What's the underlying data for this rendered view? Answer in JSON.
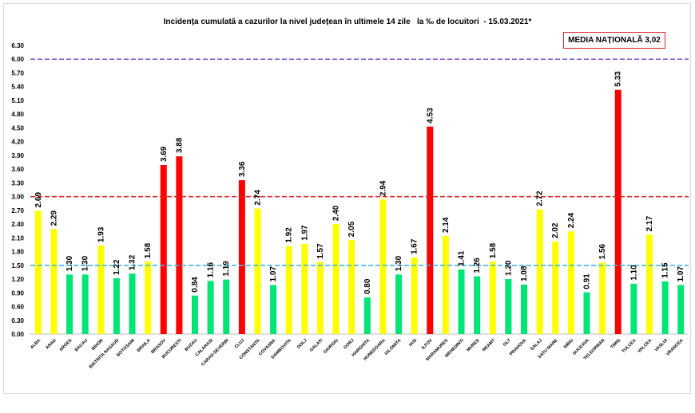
{
  "title": "Incidența cumulată a cazurilor la nivel județean în ultimele 14 zile   la ‰ de locuitori  - 15.03.2021*",
  "media_label": "MEDIA NAȚIONALĂ 3,02",
  "colors": {
    "red": "#ff0000",
    "yellow": "#ffff00",
    "green": "#00e676",
    "line_purple": "#7b4fd6",
    "line_red": "#e02020",
    "line_blue": "#3fb6e8"
  },
  "chart_data": {
    "type": "bar",
    "categories": [
      "ALBA",
      "ARAD",
      "ARGES",
      "BACAU",
      "BIHOR",
      "BISTRITA NASAUD",
      "BOTOSANI",
      "BRAILA",
      "BRASOV",
      "BUCURESTI",
      "BUZAU",
      "CALARASI",
      "CARAS-SEVERIN",
      "CLUJ",
      "CONSTANTA",
      "COVASNA",
      "DAMBOVITA",
      "DOLJ",
      "GALATI",
      "GIURGIU",
      "GORJ",
      "HARGHITA",
      "HUNEDOARA",
      "IALOMITA",
      "IASI",
      "ILFOV",
      "MARAMURES",
      "MEHEDINTI",
      "MURES",
      "NEAMT",
      "OLT",
      "PRAHOVA",
      "SALAJ",
      "SATU MARE",
      "SIBIU",
      "SUCEAVA",
      "TELEORMAN",
      "TIMIS",
      "TULCEA",
      "VALCEA",
      "VASLUI",
      "VRANCEA"
    ],
    "values": [
      2.69,
      2.29,
      1.3,
      1.3,
      1.93,
      1.22,
      1.32,
      1.58,
      3.69,
      3.88,
      0.84,
      1.16,
      1.19,
      3.36,
      2.74,
      1.07,
      1.92,
      1.97,
      1.57,
      2.4,
      2.05,
      0.8,
      2.94,
      1.3,
      1.67,
      4.53,
      2.14,
      1.41,
      1.26,
      1.58,
      1.2,
      1.08,
      2.72,
      2.02,
      2.24,
      0.91,
      1.56,
      5.33,
      1.1,
      2.17,
      1.15,
      1.07
    ],
    "bar_colors": [
      "yellow",
      "yellow",
      "green",
      "green",
      "yellow",
      "green",
      "green",
      "yellow",
      "red",
      "red",
      "green",
      "green",
      "green",
      "red",
      "yellow",
      "green",
      "yellow",
      "yellow",
      "yellow",
      "yellow",
      "yellow",
      "green",
      "yellow",
      "green",
      "yellow",
      "red",
      "yellow",
      "green",
      "green",
      "yellow",
      "green",
      "green",
      "yellow",
      "yellow",
      "yellow",
      "green",
      "yellow",
      "red",
      "green",
      "yellow",
      "green",
      "green"
    ],
    "value_labels": [
      "2.69",
      "2.29",
      "1.30",
      "1.30",
      "1.93",
      "1.22",
      "1.32",
      "1.58",
      "3.69",
      "3.88",
      "0.84",
      "1.16",
      "1.19",
      "3.36",
      "2.74",
      "1.07",
      "1.92",
      "1.97",
      "1.57",
      "2.40",
      "2.05",
      "0.80",
      "2.94",
      "1.30",
      "1.67",
      "4.53",
      "2.14",
      "1.41",
      "1.26",
      "1.58",
      "1.20",
      "1.08",
      "2.72",
      "2.02",
      "2.24",
      "0.91",
      "1.56",
      "5.33",
      "1.10",
      "2.17",
      "1.15",
      "1.07"
    ],
    "y_ticks": [
      "0.00",
      "0.30",
      "0.60",
      "0.90",
      "1.20",
      "1.50",
      "1.80",
      "2.10",
      "2.40",
      "2.70",
      "3.00",
      "3.30",
      "3.60",
      "3.90",
      "4.20",
      "4.50",
      "4.80",
      "5.10",
      "5.40",
      "5.70",
      "6.00",
      "6.30"
    ],
    "ylim": [
      0,
      6.3
    ],
    "reference_lines": [
      {
        "value": 6.0,
        "color": "line_purple"
      },
      {
        "value": 3.0,
        "color": "line_red"
      },
      {
        "value": 1.5,
        "color": "line_blue"
      }
    ],
    "grid": false,
    "legend": "none"
  }
}
